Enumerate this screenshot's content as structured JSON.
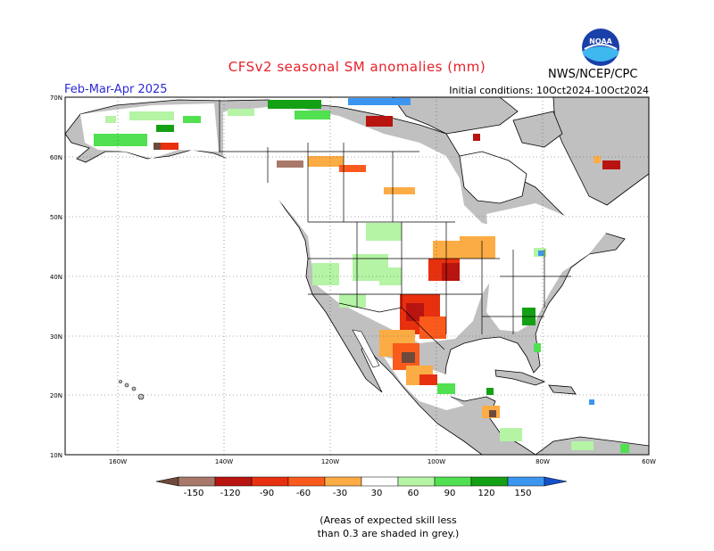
{
  "header": {
    "title": "CFSv2 seasonal SM anomalies (mm)",
    "season": "Feb-Mar-Apr 2025",
    "initial_conditions": "Initial conditions: 10Oct2024-10Oct2024",
    "agency": "NWS/NCEP/CPC",
    "logo_text": "NOAA"
  },
  "map": {
    "lat_labels": [
      "70N",
      "60N",
      "50N",
      "40N",
      "30N",
      "20N",
      "10N"
    ],
    "lon_labels": [
      "160W",
      "140W",
      "120W",
      "100W",
      "80W",
      "60W"
    ],
    "colors": {
      "land_grey": "#c0c0c0",
      "ocean": "#ffffff",
      "dark_brown": "#6e4a3c",
      "brown": "#a8796a",
      "dark_red": "#b81410",
      "red": "#e8300e",
      "orange_red": "#fa5a1c",
      "orange": "#fcac44",
      "light_green": "#b4f4a4",
      "green": "#50e050",
      "dark_green": "#14a014",
      "blue": "#3c96f0",
      "dark_blue": "#1450c8"
    }
  },
  "legend": {
    "labels": [
      "-150",
      "-120",
      "-90",
      "-60",
      "-30",
      "30",
      "60",
      "90",
      "120",
      "150"
    ],
    "colors": [
      "#6e4a3c",
      "#a8796a",
      "#b81410",
      "#e8300e",
      "#fa5a1c",
      "#fcac44",
      "#ffffff",
      "#b4f4a4",
      "#50e050",
      "#14a014",
      "#3c96f0",
      "#1450c8"
    ]
  },
  "note": {
    "line1": "(Areas of expected skill less",
    "line2": "than 0.3 are shaded in grey.)"
  }
}
